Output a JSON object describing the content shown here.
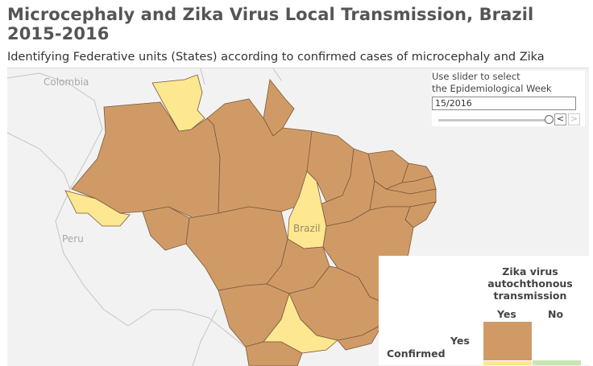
{
  "title": "Microcephaly and Zika Virus Local Transmission, Brazil 2015-2016",
  "subtitle": "Identifying Federative units (States) according to confirmed cases of microcephaly and Zika",
  "map": {
    "places": {
      "colombia": "Colombia",
      "peru": "Peru",
      "brazil": "Brazil"
    },
    "colors": {
      "both_confirmed": "#d09a67",
      "zika_only_or_none": "#fde791",
      "no_microcephaly_zika_yes": "#c9e5b0",
      "water_land": "#f2f2f2",
      "border": "#7a5a3a"
    }
  },
  "controls": {
    "slider_label_1": "Use slider to select",
    "slider_label_2": "the Epidemiological Week",
    "week_value": "15/2016",
    "slider_position": 1.0,
    "prev_label": "<",
    "next_label": ">"
  },
  "legend": {
    "title_1": "Zika virus",
    "title_2": "autochthonous",
    "title_3": "transmission",
    "col_yes": "Yes",
    "col_no": "No",
    "row_yes": "Yes",
    "row_title": "Confirmed"
  }
}
